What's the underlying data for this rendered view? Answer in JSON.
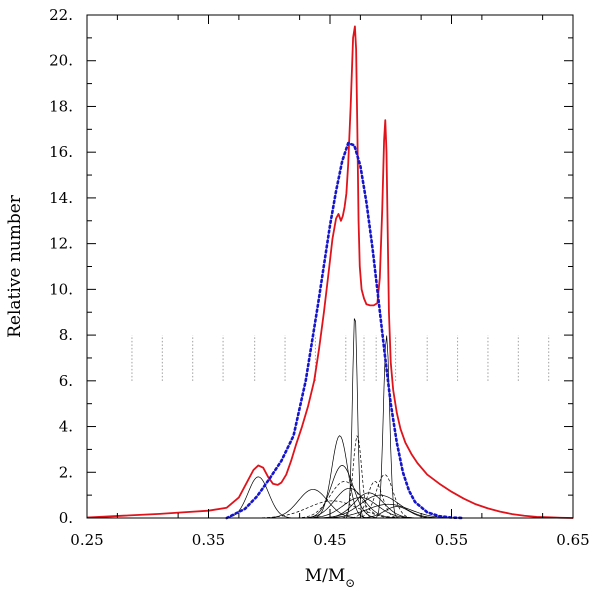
{
  "chart_data": {
    "type": "line",
    "title": "",
    "xlabel": "M/M",
    "xlabel_subscript": "⊙",
    "ylabel": "Relative number",
    "xlim": [
      0.25,
      0.65
    ],
    "ylim": [
      0,
      22
    ],
    "x_ticks": [
      "0.25",
      "0.35",
      "0.45",
      "0.55",
      "0.65"
    ],
    "x_tick_values": [
      0.25,
      0.35,
      0.45,
      0.55,
      0.65
    ],
    "y_ticks": [
      "0.",
      "2.",
      "4.",
      "6.",
      "8.",
      "10.",
      "12.",
      "14.",
      "16.",
      "18.",
      "20.",
      "22."
    ],
    "y_tick_values": [
      0,
      2,
      4,
      6,
      8,
      10,
      12,
      14,
      16,
      18,
      20,
      22
    ],
    "grid": false,
    "legend": "none",
    "series": [
      {
        "style": "solid red, thick",
        "color": "#e0131b",
        "x": [
          0.25,
          0.28,
          0.31,
          0.33,
          0.35,
          0.365,
          0.375,
          0.382,
          0.387,
          0.391,
          0.395,
          0.399,
          0.403,
          0.407,
          0.41,
          0.414,
          0.418,
          0.422,
          0.427,
          0.432,
          0.437,
          0.441,
          0.445,
          0.449,
          0.452,
          0.455,
          0.457,
          0.459,
          0.4605,
          0.462,
          0.4635,
          0.465,
          0.467,
          0.469,
          0.4705,
          0.4715,
          0.4725,
          0.4735,
          0.4745,
          0.476,
          0.478,
          0.48,
          0.483,
          0.486,
          0.489,
          0.491,
          0.493,
          0.4945,
          0.4955,
          0.4965,
          0.4975,
          0.4985,
          0.5,
          0.502,
          0.505,
          0.508,
          0.512,
          0.517,
          0.522,
          0.53,
          0.54,
          0.55,
          0.56,
          0.57,
          0.58,
          0.59,
          0.6,
          0.61,
          0.62,
          0.63,
          0.64,
          0.65
        ],
        "y": [
          0.02,
          0.1,
          0.18,
          0.25,
          0.32,
          0.45,
          0.9,
          1.6,
          2.1,
          2.3,
          2.2,
          1.8,
          1.5,
          1.45,
          1.55,
          1.9,
          2.5,
          3.2,
          4.0,
          4.9,
          6.0,
          7.4,
          9.0,
          10.8,
          12.2,
          13.1,
          13.3,
          13.0,
          13.2,
          13.6,
          14.2,
          15.5,
          18.0,
          21.0,
          21.5,
          20.5,
          17.0,
          13.0,
          11.0,
          10.0,
          9.6,
          9.35,
          9.3,
          9.3,
          9.4,
          10.5,
          13.5,
          16.5,
          17.4,
          16.0,
          12.5,
          9.0,
          6.8,
          5.6,
          4.6,
          3.9,
          3.3,
          2.8,
          2.4,
          1.9,
          1.5,
          1.15,
          0.85,
          0.6,
          0.42,
          0.28,
          0.17,
          0.1,
          0.05,
          0.03,
          0.01,
          0.0
        ]
      },
      {
        "style": "dotted blue",
        "color": "#1515cc",
        "x": [
          0.365,
          0.38,
          0.39,
          0.4,
          0.41,
          0.42,
          0.43,
          0.44,
          0.45,
          0.455,
          0.46,
          0.465,
          0.47,
          0.475,
          0.48,
          0.485,
          0.49,
          0.495,
          0.5,
          0.505,
          0.51,
          0.515,
          0.52,
          0.53,
          0.54,
          0.55,
          0.56
        ],
        "y": [
          0.0,
          0.4,
          0.95,
          1.7,
          2.5,
          3.6,
          6.0,
          9.3,
          12.8,
          14.3,
          15.6,
          16.4,
          16.3,
          15.4,
          13.8,
          11.8,
          9.5,
          7.2,
          5.0,
          3.3,
          2.0,
          1.2,
          0.7,
          0.25,
          0.08,
          0.02,
          0.0
        ]
      }
    ],
    "components": [
      {
        "mu": 0.391,
        "sigma": 0.0085,
        "amp": 1.8
      },
      {
        "mu": 0.436,
        "sigma": 0.012,
        "amp": 1.25
      },
      {
        "mu": 0.452,
        "sigma": 0.02,
        "amp": 0.75
      },
      {
        "mu": 0.458,
        "sigma": 0.0065,
        "amp": 3.6
      },
      {
        "mu": 0.46,
        "sigma": 0.009,
        "amp": 2.3
      },
      {
        "mu": 0.462,
        "sigma": 0.012,
        "amp": 1.6
      },
      {
        "mu": 0.466,
        "sigma": 0.012,
        "amp": 1.3
      },
      {
        "mu": 0.4705,
        "sigma": 0.002,
        "amp": 9.0
      },
      {
        "mu": 0.4725,
        "sigma": 0.0035,
        "amp": 3.6
      },
      {
        "mu": 0.475,
        "sigma": 0.014,
        "amp": 0.9
      },
      {
        "mu": 0.482,
        "sigma": 0.012,
        "amp": 1.1
      },
      {
        "mu": 0.487,
        "sigma": 0.006,
        "amp": 1.6
      },
      {
        "mu": 0.491,
        "sigma": 0.016,
        "amp": 1.0
      },
      {
        "mu": 0.4965,
        "sigma": 0.0025,
        "amp": 8.0
      },
      {
        "mu": 0.495,
        "sigma": 0.007,
        "amp": 1.9
      },
      {
        "mu": 0.498,
        "sigma": 0.018,
        "amp": 0.6
      },
      {
        "mu": 0.505,
        "sigma": 0.01,
        "amp": 0.5
      }
    ],
    "vertical_markers": {
      "style": "dotted grey",
      "color": "#a0a0a0",
      "x": [
        0.287,
        0.312,
        0.337,
        0.362,
        0.388,
        0.413,
        0.438,
        0.463,
        0.478,
        0.488,
        0.504,
        0.53,
        0.555,
        0.58,
        0.605,
        0.63
      ],
      "y_range": [
        6.0,
        8.0
      ]
    }
  }
}
